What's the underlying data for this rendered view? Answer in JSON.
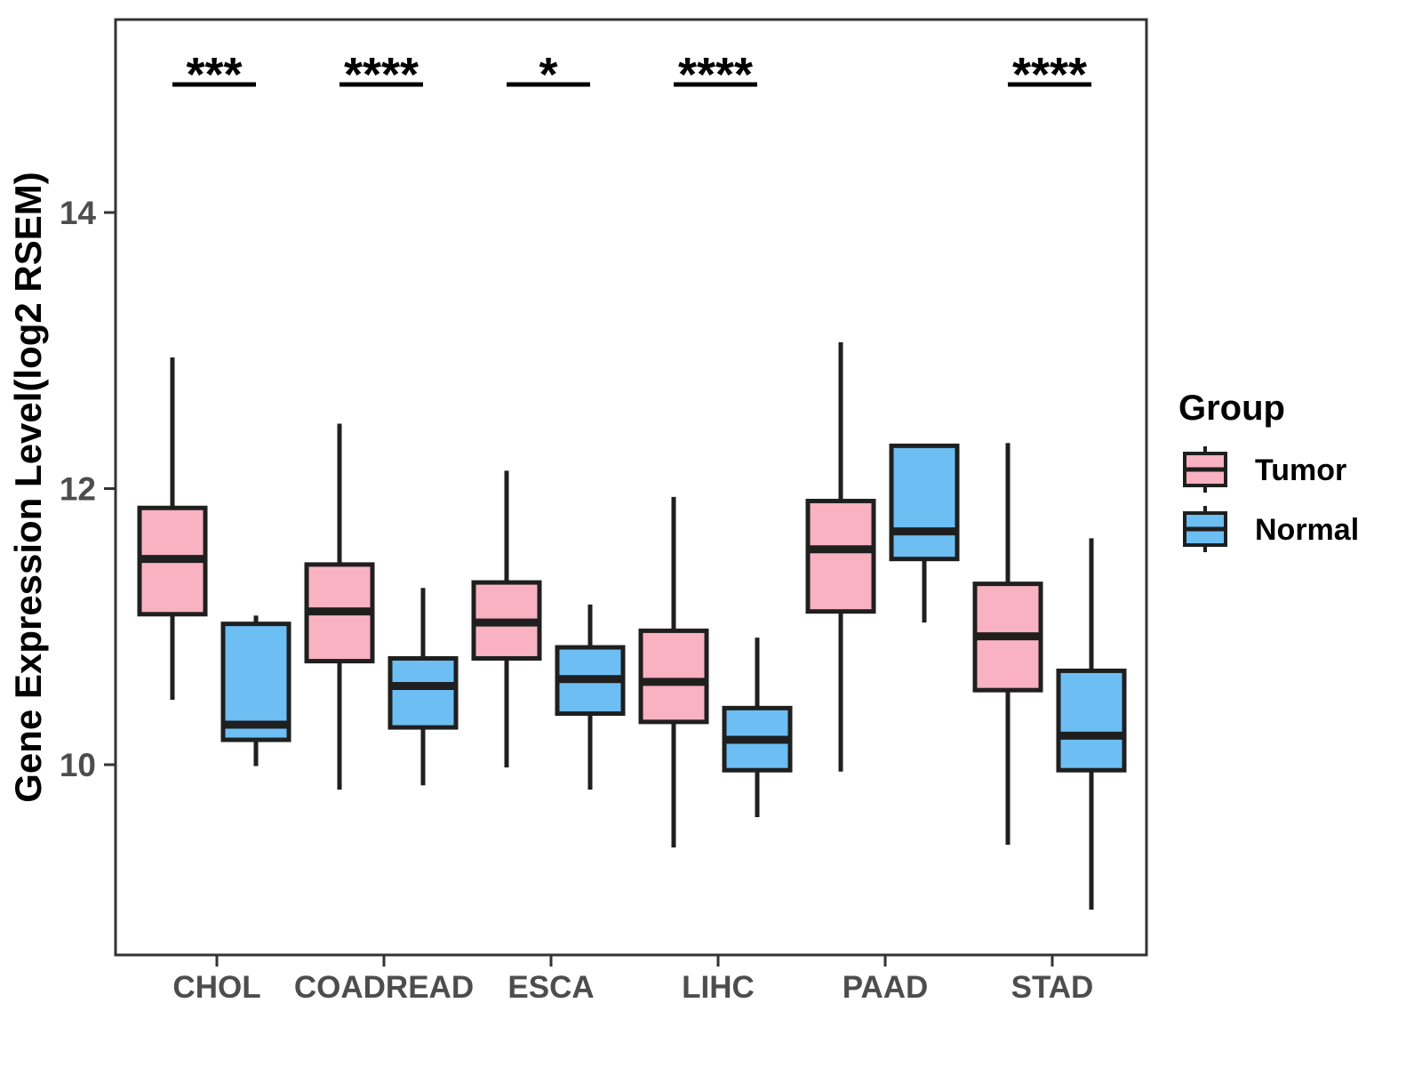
{
  "figure": {
    "background": "#FFFFFF",
    "panel_border_color": "#333333",
    "line_color": "#1F1F1F",
    "tick_label_color": "#4D4D4D",
    "axis_title_color": "#000000",
    "sig_color": "#000000"
  },
  "chart_data": {
    "type": "boxplot",
    "title": "",
    "xlabel": "",
    "ylabel": "Gene Expression Level(log2 RSEM)",
    "ylim": [
      8.6,
      15.4
    ],
    "yticks": [
      10,
      12,
      14
    ],
    "grid": false,
    "legend_position": "right",
    "categories": [
      "CHOL",
      "COADREAD",
      "ESCA",
      "LIHC",
      "PAAD",
      "STAD"
    ],
    "significance": [
      "***",
      "****",
      "*",
      "****",
      "",
      "****"
    ],
    "legend": {
      "title": "Group",
      "entries": [
        {
          "label": "Tumor",
          "color": "#F9B2C1"
        },
        {
          "label": "Normal",
          "color": "#6CBEF3"
        }
      ]
    },
    "series": [
      {
        "name": "Tumor",
        "color": "#F9B2C1",
        "stats": [
          {
            "category": "CHOL",
            "min": 10.47,
            "q1": 11.09,
            "median": 11.49,
            "q3": 11.86,
            "max": 12.95
          },
          {
            "category": "COADREAD",
            "min": 9.82,
            "q1": 10.75,
            "median": 11.11,
            "q3": 11.45,
            "max": 12.47
          },
          {
            "category": "ESCA",
            "min": 9.98,
            "q1": 10.77,
            "median": 11.03,
            "q3": 11.32,
            "max": 12.13
          },
          {
            "category": "LIHC",
            "min": 9.4,
            "q1": 10.31,
            "median": 10.6,
            "q3": 10.97,
            "max": 11.94
          },
          {
            "category": "PAAD",
            "min": 9.95,
            "q1": 11.11,
            "median": 11.56,
            "q3": 11.91,
            "max": 13.06
          },
          {
            "category": "STAD",
            "min": 9.42,
            "q1": 10.54,
            "median": 10.93,
            "q3": 11.31,
            "max": 12.33
          }
        ]
      },
      {
        "name": "Normal",
        "color": "#6CBEF3",
        "stats": [
          {
            "category": "CHOL",
            "min": 9.99,
            "q1": 10.18,
            "median": 10.29,
            "q3": 11.02,
            "max": 11.08
          },
          {
            "category": "COADREAD",
            "min": 9.85,
            "q1": 10.27,
            "median": 10.57,
            "q3": 10.77,
            "max": 11.28
          },
          {
            "category": "ESCA",
            "min": 9.82,
            "q1": 10.37,
            "median": 10.62,
            "q3": 10.85,
            "max": 11.16
          },
          {
            "category": "LIHC",
            "min": 9.62,
            "q1": 9.96,
            "median": 10.18,
            "q3": 10.41,
            "max": 10.92
          },
          {
            "category": "PAAD",
            "min": 11.03,
            "q1": 11.49,
            "median": 11.69,
            "q3": 12.31,
            "max": 12.31
          },
          {
            "category": "STAD",
            "min": 8.95,
            "q1": 9.96,
            "median": 10.21,
            "q3": 10.68,
            "max": 11.64
          }
        ]
      }
    ]
  }
}
